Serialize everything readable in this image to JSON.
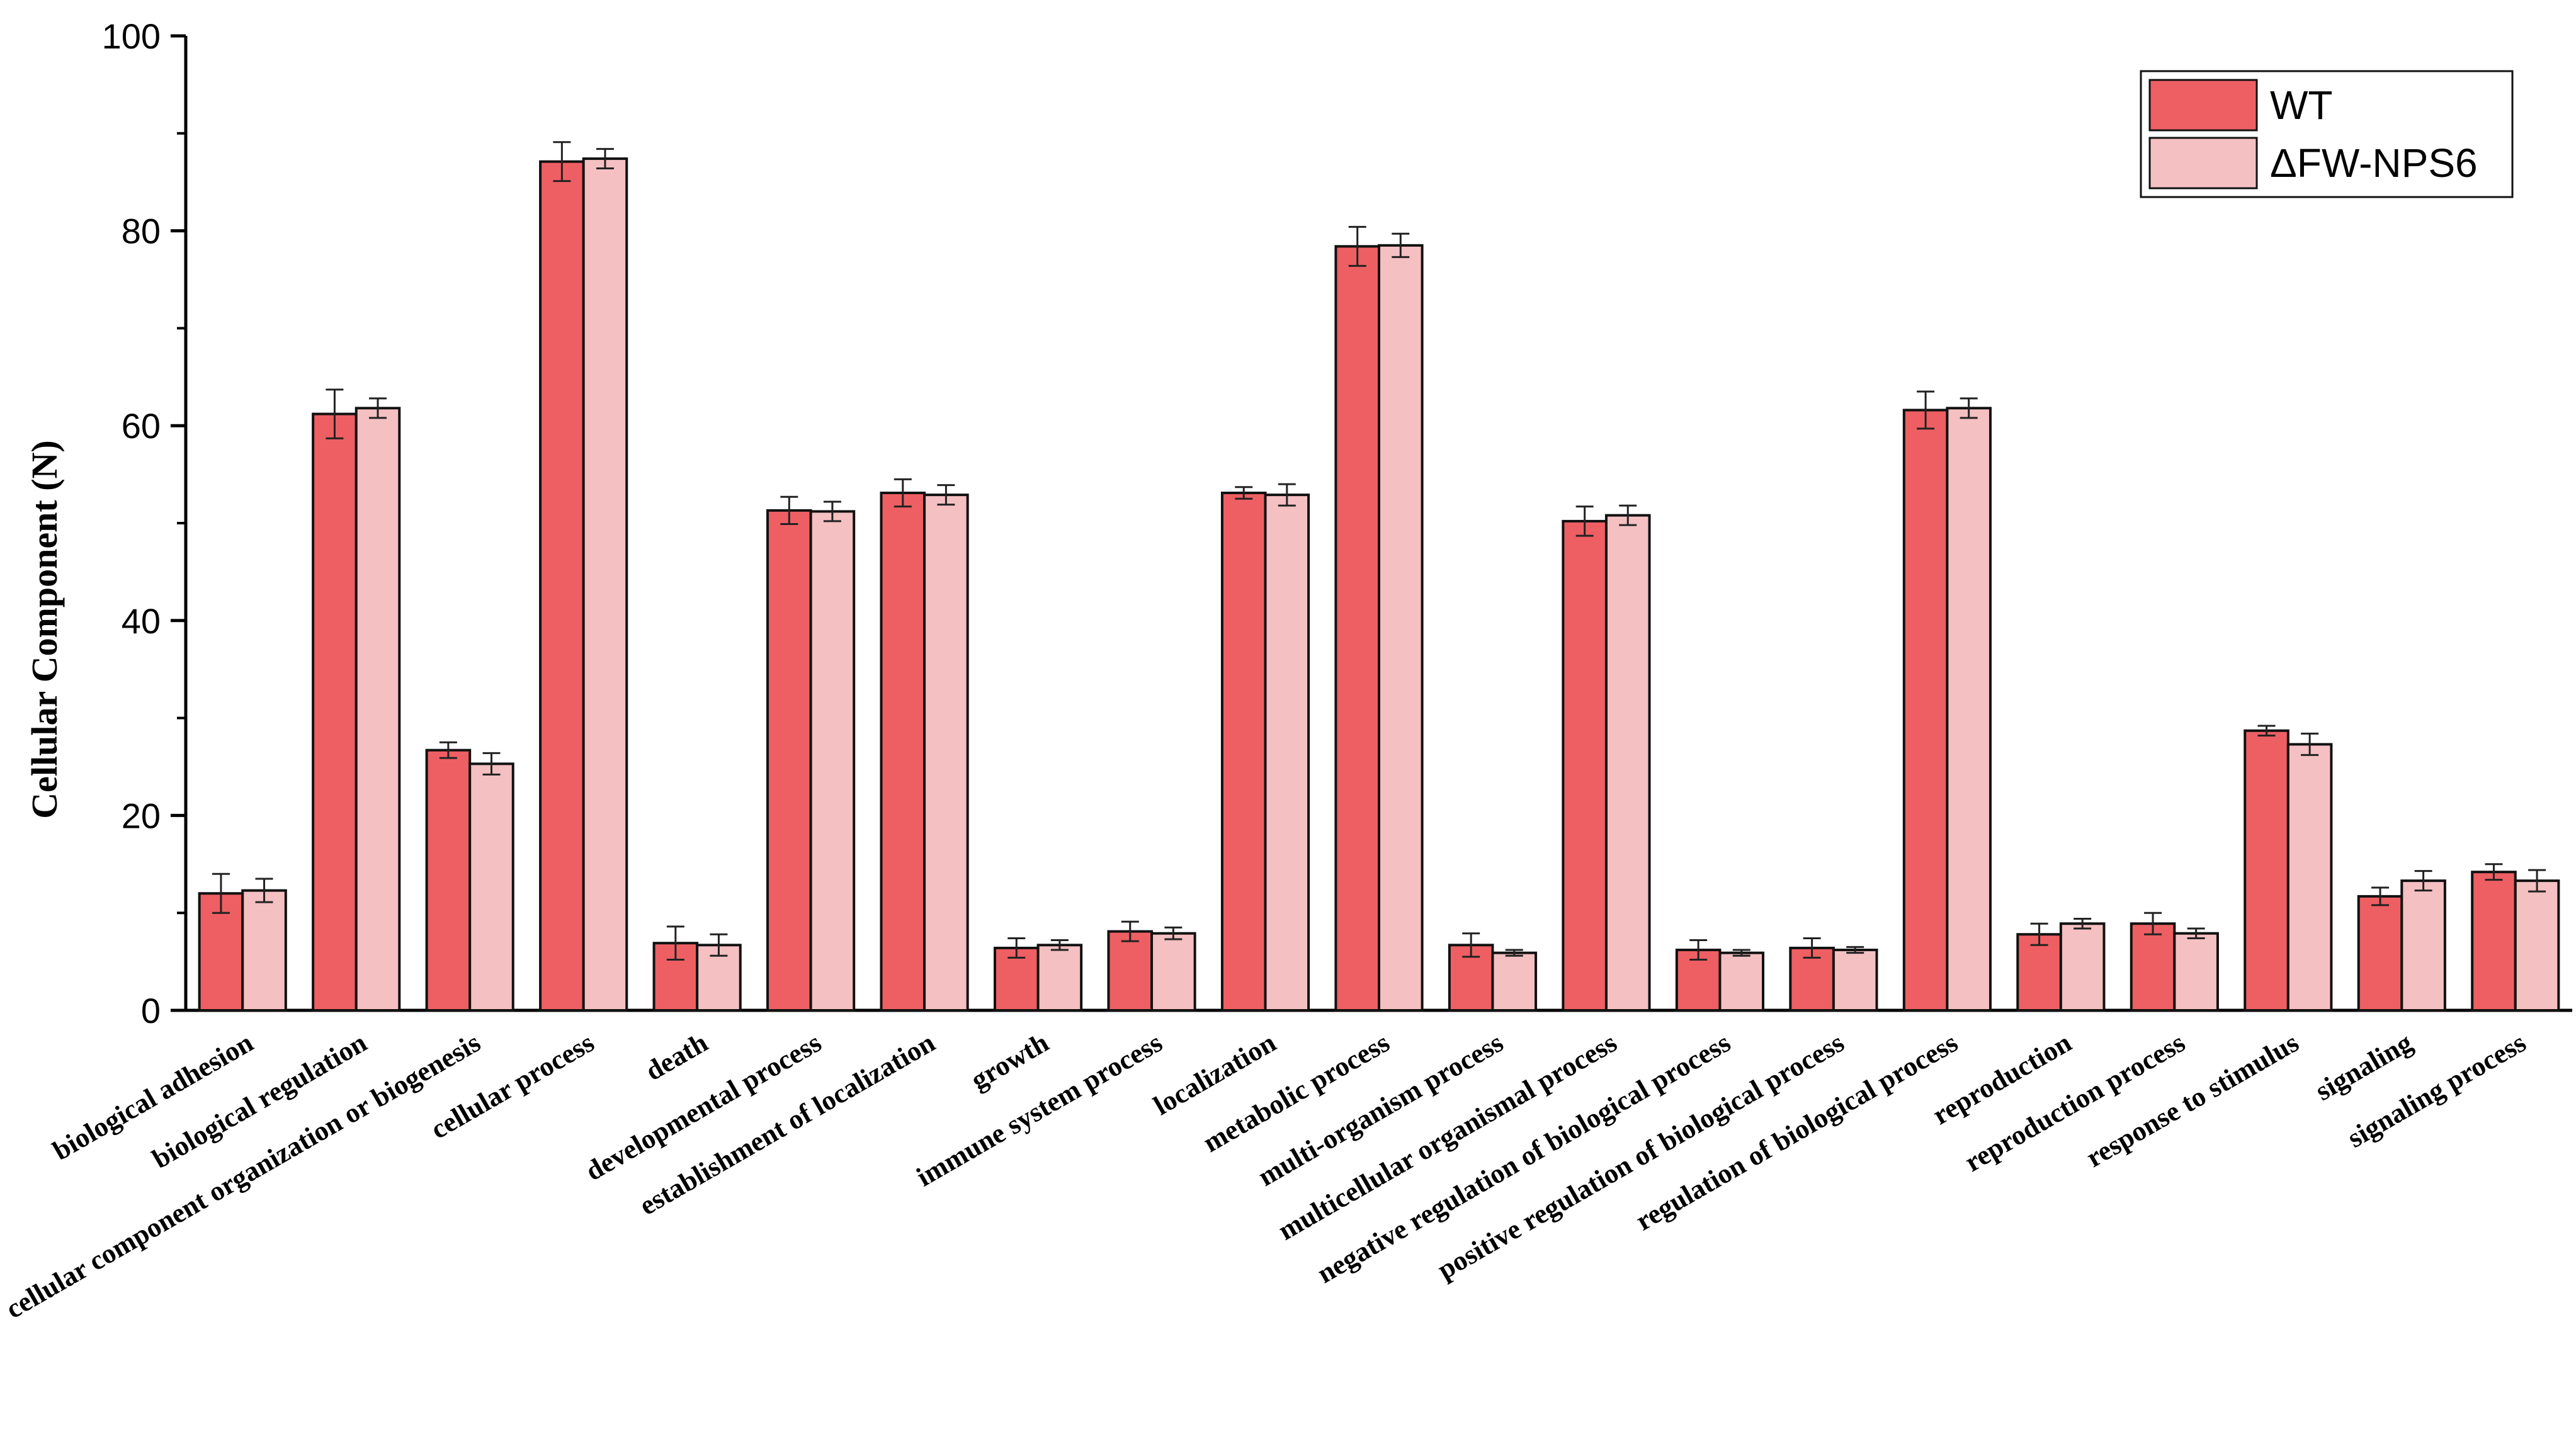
{
  "chart_data": {
    "type": "bar",
    "ylabel": "Cellular Component (N)",
    "xlabel": "",
    "ylim": [
      0,
      100
    ],
    "yticks": [
      "0",
      "20",
      "40",
      "60",
      "80",
      "100"
    ],
    "legend_position": "top-right",
    "categories": [
      "biological adhesion",
      "biological regulation",
      "cellular component organization or biogenesis",
      "cellular process",
      "death",
      "developmental process",
      "establishment of localization",
      "growth",
      "immune system process",
      "localization",
      "metabolic process",
      "multi-organism process",
      "multicellular organismal process",
      "negative regulation of biological process",
      "positive regulation of biological process",
      "regulation of biological process",
      "reproduction",
      "reproduction process",
      "response to stimulus",
      "signaling",
      "signaling process"
    ],
    "series": [
      {
        "name": "WT",
        "color": "#ee5f63",
        "values": [
          12,
          61.2,
          26.7,
          87.1,
          6.9,
          51.3,
          53.1,
          6.4,
          8.1,
          53.1,
          78.4,
          6.7,
          50.2,
          6.2,
          6.4,
          61.6,
          7.8,
          8.9,
          28.7,
          11.7,
          14.2
        ],
        "errors": [
          2.0,
          2.5,
          0.8,
          2.0,
          1.7,
          1.4,
          1.4,
          1.0,
          1.0,
          0.6,
          2.0,
          1.2,
          1.5,
          1.0,
          1.0,
          1.9,
          1.1,
          1.1,
          0.5,
          0.9,
          0.8
        ]
      },
      {
        "name": "ΔFW-NPS6",
        "color": "#f5c0c2",
        "values": [
          12.3,
          61.8,
          25.3,
          87.4,
          6.7,
          51.2,
          52.9,
          6.7,
          7.9,
          52.9,
          78.5,
          5.9,
          50.8,
          5.9,
          6.2,
          61.8,
          8.9,
          7.9,
          27.3,
          13.3,
          13.3
        ],
        "errors": [
          1.2,
          1.0,
          1.1,
          1.0,
          1.1,
          1.0,
          1.0,
          0.5,
          0.6,
          1.1,
          1.2,
          0.3,
          1.0,
          0.3,
          0.3,
          1.0,
          0.5,
          0.5,
          1.1,
          1.0,
          1.1
        ]
      }
    ]
  }
}
